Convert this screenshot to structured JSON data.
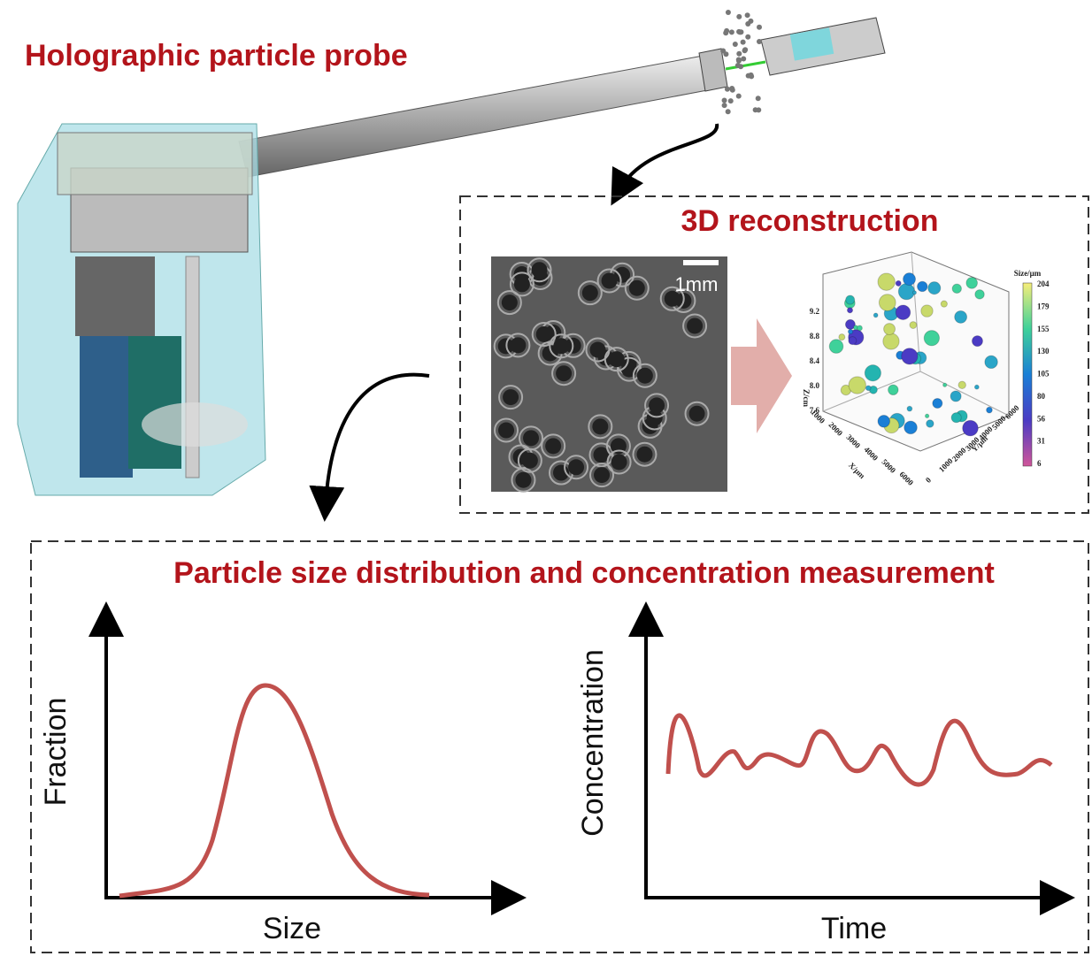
{
  "header": {
    "title": "Holographic particle probe"
  },
  "reconstruction": {
    "title": "3D reconstruction",
    "scale_bar": "1mm",
    "plot": {
      "colorbar_title": "Size/μm",
      "colorbar_ticks": [
        "204",
        "179",
        "155",
        "130",
        "105",
        "80",
        "56",
        "31",
        "6"
      ],
      "x_label": "X/μm",
      "y_label": "Y/μm",
      "z_label": "Z/cm",
      "x_ticks": [
        "1000",
        "2000",
        "3000",
        "4000",
        "5000",
        "6000"
      ],
      "y_ticks": [
        "0",
        "1000",
        "2000",
        "3000",
        "4000",
        "5000",
        "6000"
      ],
      "z_ticks": [
        "7.6",
        "8.0",
        "8.4",
        "8.8",
        "9.2"
      ]
    }
  },
  "measurement": {
    "title": "Particle size distribution and concentration measurement",
    "left_plot": {
      "y_label": "Fraction",
      "x_label": "Size"
    },
    "right_plot": {
      "y_label": "Concentration",
      "x_label": "Time"
    }
  }
}
